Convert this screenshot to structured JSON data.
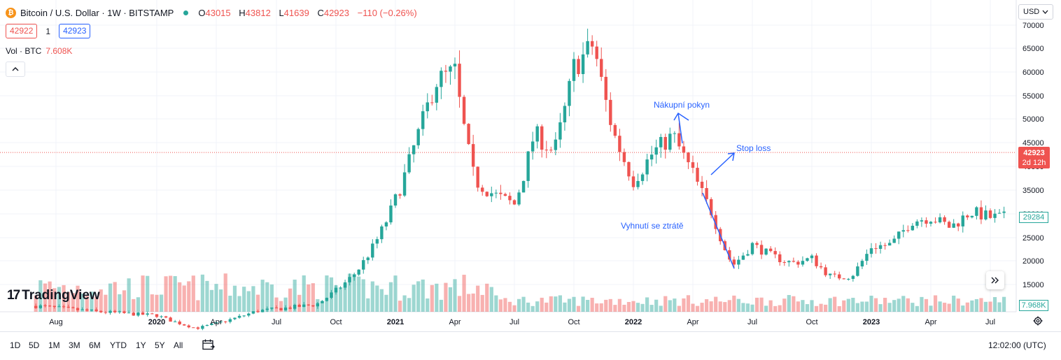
{
  "header": {
    "symbol_logo": "₿",
    "title": "Bitcoin / U.S. Dollar · 1W · BITSTAMP",
    "ohlc": [
      {
        "key": "O",
        "value": "43015"
      },
      {
        "key": "H",
        "value": "43812"
      },
      {
        "key": "L",
        "value": "41639"
      },
      {
        "key": "C",
        "value": "42923"
      }
    ],
    "change": "−110 (−0.26%)"
  },
  "prices": {
    "sell": "42922",
    "spread": "1",
    "buy": "42923"
  },
  "volume_legend": {
    "label": "Vol · BTC",
    "value": "7.608K"
  },
  "collapse_icon": "chevron-up-icon",
  "currency": {
    "label": "USD",
    "icon": "chevron-down-icon"
  },
  "logo": {
    "mark": "17",
    "text": "TradingView"
  },
  "price_tags": {
    "last_price": "42923",
    "countdown": "2d 12h",
    "second_price": "29284",
    "volume": "7.968K"
  },
  "annotations": {
    "buy_order": "Nákupní pokyn",
    "stop_loss": "Stop loss",
    "avoid_loss": "Vyhnutí se ztrátě"
  },
  "toolbar": {
    "ranges": [
      "1D",
      "5D",
      "1M",
      "3M",
      "6M",
      "YTD",
      "1Y",
      "5Y",
      "All"
    ],
    "calendar_icon": "calendar-icon",
    "time": "12:02:00 (UTC)",
    "scroll_icon": "double-chevron-right-icon",
    "settings_icon": "gear-icon"
  },
  "chart_data": {
    "type": "candlestick",
    "title": "Bitcoin / U.S. Dollar · 1W · BITSTAMP",
    "timeframe": "1W",
    "y_ticks": [
      15000,
      20000,
      25000,
      30000,
      35000,
      40000,
      45000,
      50000,
      55000,
      60000,
      65000,
      70000
    ],
    "x_ticks": [
      "Aug",
      "2020",
      "Apr",
      "Jul",
      "Oct",
      "2021",
      "Apr",
      "Jul",
      "Oct",
      "2022",
      "Apr",
      "Jul",
      "Oct",
      "2023",
      "Apr",
      "Jul"
    ],
    "last_price_line": 42923,
    "grid": true,
    "up_color": "#26a69a",
    "down_color": "#ef5350",
    "close_path": [
      {
        "t": "2019-07",
        "c": 10500
      },
      {
        "t": "2019-10",
        "c": 9300
      },
      {
        "t": "2020-01",
        "c": 8500
      },
      {
        "t": "2020-03",
        "c": 5800
      },
      {
        "t": "2020-06",
        "c": 9400
      },
      {
        "t": "2020-09",
        "c": 10800
      },
      {
        "t": "2020-11",
        "c": 17500
      },
      {
        "t": "2020-12",
        "c": 24000
      },
      {
        "t": "2021-01",
        "c": 33000
      },
      {
        "t": "2021-02",
        "c": 45000
      },
      {
        "t": "2021-03",
        "c": 58000
      },
      {
        "t": "2021-04",
        "c": 60000
      },
      {
        "t": "2021-05",
        "c": 37000
      },
      {
        "t": "2021-06",
        "c": 34000
      },
      {
        "t": "2021-07",
        "c": 32000
      },
      {
        "t": "2021-08",
        "c": 47000
      },
      {
        "t": "2021-09",
        "c": 43000
      },
      {
        "t": "2021-10",
        "c": 61000
      },
      {
        "t": "2021-11",
        "c": 66000
      },
      {
        "t": "2021-12",
        "c": 47000
      },
      {
        "t": "2022-01",
        "c": 37000
      },
      {
        "t": "2022-02",
        "c": 43000
      },
      {
        "t": "2022-03",
        "c": 46500
      },
      {
        "t": "2022-04",
        "c": 38500
      },
      {
        "t": "2022-05",
        "c": 30000
      },
      {
        "t": "2022-06",
        "c": 19000
      },
      {
        "t": "2022-07",
        "c": 23500
      },
      {
        "t": "2022-08",
        "c": 21000
      },
      {
        "t": "2022-09",
        "c": 19500
      },
      {
        "t": "2022-10",
        "c": 20500
      },
      {
        "t": "2022-11",
        "c": 16500
      },
      {
        "t": "2022-12",
        "c": 16800
      },
      {
        "t": "2023-01",
        "c": 23000
      },
      {
        "t": "2023-02",
        "c": 23500
      },
      {
        "t": "2023-03",
        "c": 28500
      },
      {
        "t": "2023-04",
        "c": 29300
      },
      {
        "t": "2023-05",
        "c": 27200
      },
      {
        "t": "2023-06",
        "c": 30500
      },
      {
        "t": "2023-07",
        "c": 29284
      }
    ]
  }
}
